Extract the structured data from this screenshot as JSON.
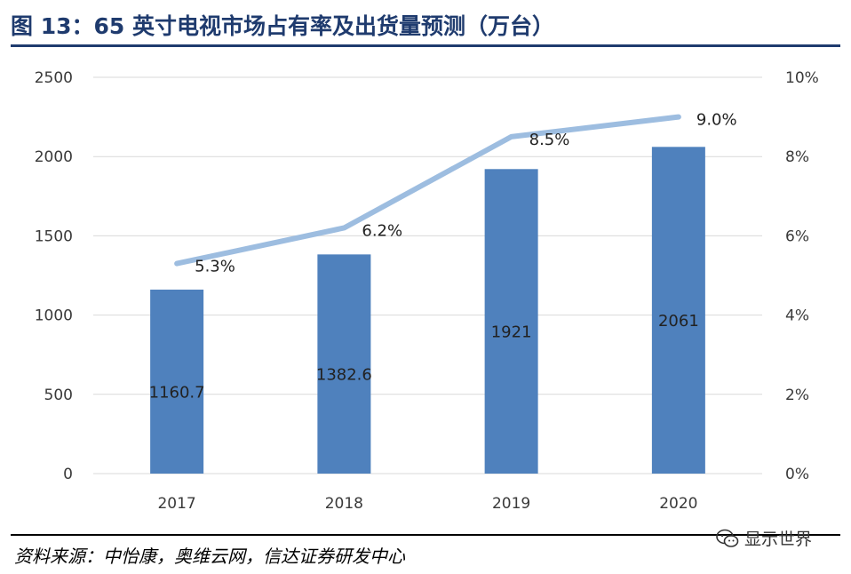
{
  "title": "图 13：65 英寸电视市场占有率及出货量预测（万台）",
  "source": "资料来源：中怡康，奥维云网，信达证券研发中心",
  "watermark": {
    "text": "显示世界",
    "icon": "wechat-icon"
  },
  "colors": {
    "bar": "#4f81bd",
    "line": "#9dbde0",
    "title": "#1f3b6e"
  },
  "chart_data": {
    "type": "bar",
    "categories": [
      "2017",
      "2018",
      "2019",
      "2020"
    ],
    "series": [
      {
        "kind": "bar",
        "axis": "left",
        "values": [
          1160.7,
          1382.6,
          1921,
          2061
        ],
        "labels": [
          "1160.7",
          "1382.6",
          "1921",
          "2061"
        ]
      },
      {
        "kind": "line",
        "axis": "right",
        "values": [
          5.3,
          6.2,
          8.5,
          9.0
        ],
        "labels": [
          "5.3%",
          "6.2%",
          "8.5%",
          "9.0%"
        ]
      }
    ],
    "y_left": {
      "min": 0,
      "max": 2500,
      "ticks": [
        "0",
        "500",
        "1000",
        "1500",
        "2000",
        "2500"
      ]
    },
    "y_right": {
      "min": 0,
      "max": 10,
      "ticks": [
        "0%",
        "2%",
        "4%",
        "6%",
        "8%",
        "10%"
      ]
    },
    "grid": true,
    "legend": "none"
  }
}
